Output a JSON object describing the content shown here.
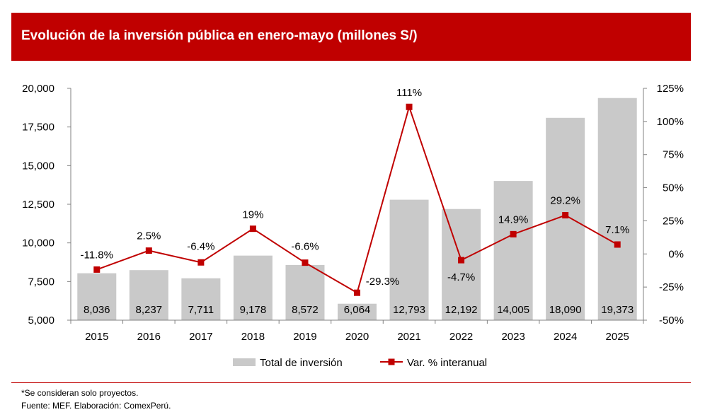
{
  "title": "Evolución de la inversión pública en enero-mayo (millones S/)",
  "chart_data": {
    "type": "bar",
    "title": "Evolución de la inversión pública en enero-mayo (millones S/)",
    "categories": [
      "2015",
      "2016",
      "2017",
      "2018",
      "2019",
      "2020",
      "2021",
      "2022",
      "2023",
      "2024",
      "2025"
    ],
    "series": [
      {
        "name": "Total de inversión",
        "type": "bar",
        "axis": "left",
        "color": "#c9c9c9",
        "values": [
          8036,
          8237,
          7711,
          9178,
          8572,
          6064,
          12793,
          12192,
          14005,
          18090,
          19373
        ],
        "labels": [
          "8,036",
          "8,237",
          "7,711",
          "9,178",
          "8,572",
          "6,064",
          "12,793",
          "12,192",
          "14,005",
          "18,090",
          "19,373"
        ]
      },
      {
        "name": "Var. % interanual",
        "type": "line",
        "axis": "right",
        "color": "#c00000",
        "values": [
          -11.8,
          2.5,
          -6.4,
          19,
          -6.6,
          -29.3,
          111,
          -4.7,
          14.9,
          29.2,
          7.1
        ],
        "labels": [
          "-11.8%",
          "2.5%",
          "-6.4%",
          "19%",
          "-6.6%",
          "-29.3%",
          "111%",
          "-4.7%",
          "14.9%",
          "29.2%",
          "7.1%"
        ]
      }
    ],
    "y_left": {
      "min": 5000,
      "max": 20000,
      "ticks": [
        5000,
        7500,
        10000,
        12500,
        15000,
        17500,
        20000
      ],
      "tick_labels": [
        "5,000",
        "7,500",
        "10,000",
        "12,500",
        "15,000",
        "17,500",
        "20,000"
      ]
    },
    "y_right": {
      "min": -50,
      "max": 125,
      "ticks": [
        -50,
        -25,
        0,
        25,
        50,
        75,
        100,
        125
      ],
      "tick_labels": [
        "-50%",
        "-25%",
        "0%",
        "25%",
        "50%",
        "75%",
        "100%",
        "125%"
      ]
    },
    "grid": false,
    "legend": "bottom"
  },
  "footnote": "*Se consideran solo proyectos.",
  "source": "Fuente: MEF. Elaboración: ComexPerú."
}
